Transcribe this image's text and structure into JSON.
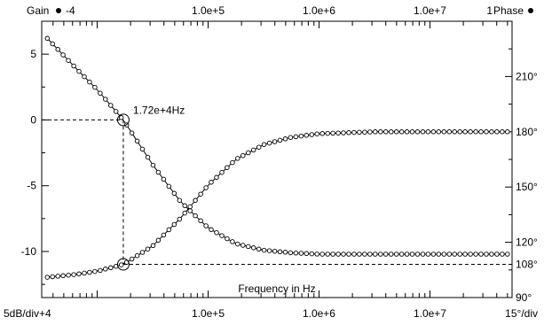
{
  "chart_data": {
    "type": "line",
    "x_scale": "log",
    "xlim": [
      3162,
      55000000.0
    ],
    "ylim_gain": [
      -13.5,
      7.5
    ],
    "ylim_phase": [
      90,
      240
    ],
    "grid": false,
    "top_left_label": "Gain",
    "top_left_value": "-4",
    "top_right_value": "1",
    "top_right_label": "Phase",
    "bottom_left_label": "5dB/div+4",
    "bottom_right_label": "15°/div",
    "x_title": "Frequency in Hz",
    "x_ticks": [
      {
        "value": 100000,
        "label": "1.0e+5"
      },
      {
        "value": 1000000,
        "label": "1.0e+6"
      },
      {
        "value": 10000000,
        "label": "1.0e+7"
      }
    ],
    "gain_ticks": [
      {
        "value": 5,
        "label": "5"
      },
      {
        "value": 0,
        "label": "0"
      },
      {
        "value": -5,
        "label": "-5"
      },
      {
        "value": -10,
        "label": "-10"
      }
    ],
    "phase_ticks": [
      {
        "value": 210,
        "label": "210°"
      },
      {
        "value": 180,
        "label": "180°"
      },
      {
        "value": 150,
        "label": "150°"
      },
      {
        "value": 120,
        "label": "120°"
      },
      {
        "value": 108,
        "label": "108°"
      },
      {
        "value": 90,
        "label": "90°"
      }
    ],
    "marker": {
      "frequency": 17200,
      "gain": 0,
      "phase": 108,
      "label": "1.72e+4Hz"
    },
    "series": [
      {
        "axis": "gain",
        "x": [
          3548,
          6310,
          10000,
          17200,
          31623,
          56234,
          100000,
          177828,
          316228,
          562341,
          1000000,
          3162278,
          10000000,
          50000000
        ],
        "y": [
          6.2,
          4.0,
          2.3,
          0.0,
          -3.4,
          -6.2,
          -8.2,
          -9.4,
          -9.9,
          -10.1,
          -10.2,
          -10.2,
          -10.2,
          -10.2
        ]
      },
      {
        "axis": "phase",
        "x": [
          3548,
          6310,
          10000,
          17200,
          31623,
          56234,
          100000,
          177828,
          316228,
          562341,
          1000000,
          3162278,
          10000000,
          50000000
        ],
        "y": [
          101,
          102.5,
          104.3,
          108,
          118,
          133,
          151,
          165,
          173,
          177,
          179,
          180,
          180,
          180
        ]
      }
    ]
  }
}
